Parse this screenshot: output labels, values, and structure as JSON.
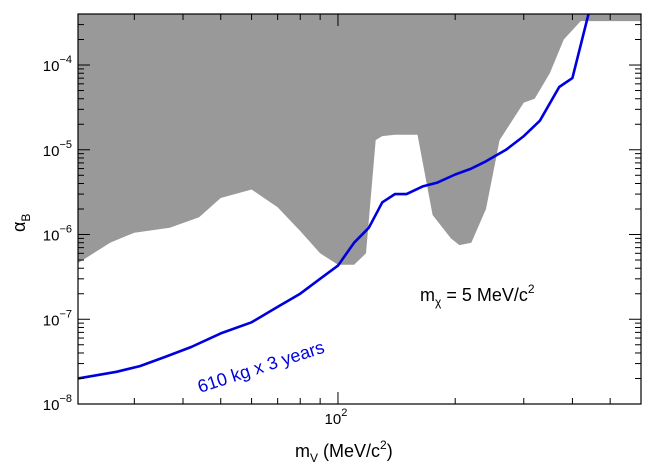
{
  "chart_data": {
    "type": "area",
    "x_scale": "log",
    "y_scale": "log",
    "xlim": [
      21.5,
      600
    ],
    "ylim": [
      1e-08,
      0.0004
    ],
    "x_major_ticks": [
      100
    ],
    "x_major_labels": [
      {
        "base": "10",
        "exp": "2"
      }
    ],
    "y_major_ticks": [
      1e-08,
      1e-07,
      1e-06,
      1e-05,
      0.0001
    ],
    "y_major_labels": [
      {
        "base": "10",
        "exp": "−8"
      },
      {
        "base": "10",
        "exp": "−7"
      },
      {
        "base": "10",
        "exp": "−6"
      },
      {
        "base": "10",
        "exp": "−5"
      },
      {
        "base": "10",
        "exp": "−4"
      }
    ],
    "xlabel": {
      "main": "m",
      "sub": "V",
      "rest": " (MeV/c",
      "sup": "2",
      "end": ")"
    },
    "ylabel": {
      "main": "α",
      "sub": "B"
    },
    "annotation": {
      "main": "m",
      "sub": "χ",
      "rest": " = 5 MeV/c",
      "sup": "2"
    },
    "colors": {
      "excluded": "#999999",
      "projection": "#0000dd",
      "axis": "#000000"
    },
    "excluded_region_lower_boundary": {
      "x": [
        21.5,
        26,
        30,
        37,
        44,
        50,
        60,
        70,
        80,
        90,
        100,
        110,
        118,
        125,
        130,
        140,
        160,
        175,
        195,
        205,
        220,
        240,
        260,
        300,
        320,
        350,
        380,
        420,
        600
      ],
      "y": [
        4.6e-07,
        8e-07,
        1.05e-06,
        1.2e-06,
        1.6e-06,
        2.7e-06,
        3.4e-06,
        2.1e-06,
        1.1e-06,
        6e-07,
        4.4e-07,
        4.4e-07,
        6e-07,
        1.3e-05,
        1.45e-05,
        1.5e-05,
        1.5e-05,
        1.7e-06,
        9e-07,
        7.5e-07,
        8e-07,
        2e-06,
        1.3e-05,
        3.6e-05,
        4e-05,
        8e-05,
        0.0002,
        0.00033,
        0.00033
      ]
    },
    "series": [
      {
        "name": "610 kg x 3 years",
        "x": [
          21.5,
          27,
          31,
          36,
          42,
          50,
          60,
          70,
          80,
          90,
          100,
          110,
          120,
          130,
          140,
          150,
          165,
          180,
          200,
          220,
          240,
          270,
          300,
          330,
          370,
          400,
          440
        ],
        "y": [
          2e-08,
          2.4e-08,
          2.8e-08,
          3.6e-08,
          4.7e-08,
          6.8e-08,
          9.2e-08,
          1.4e-07,
          2e-07,
          3e-07,
          4.3e-07,
          8e-07,
          1.2e-06,
          2.4e-06,
          3e-06,
          3e-06,
          3.7e-06,
          4.1e-06,
          5.1e-06,
          6e-06,
          7.3e-06,
          1e-05,
          1.45e-05,
          2.2e-05,
          5.5e-05,
          7e-05,
          0.0004
        ]
      }
    ]
  }
}
